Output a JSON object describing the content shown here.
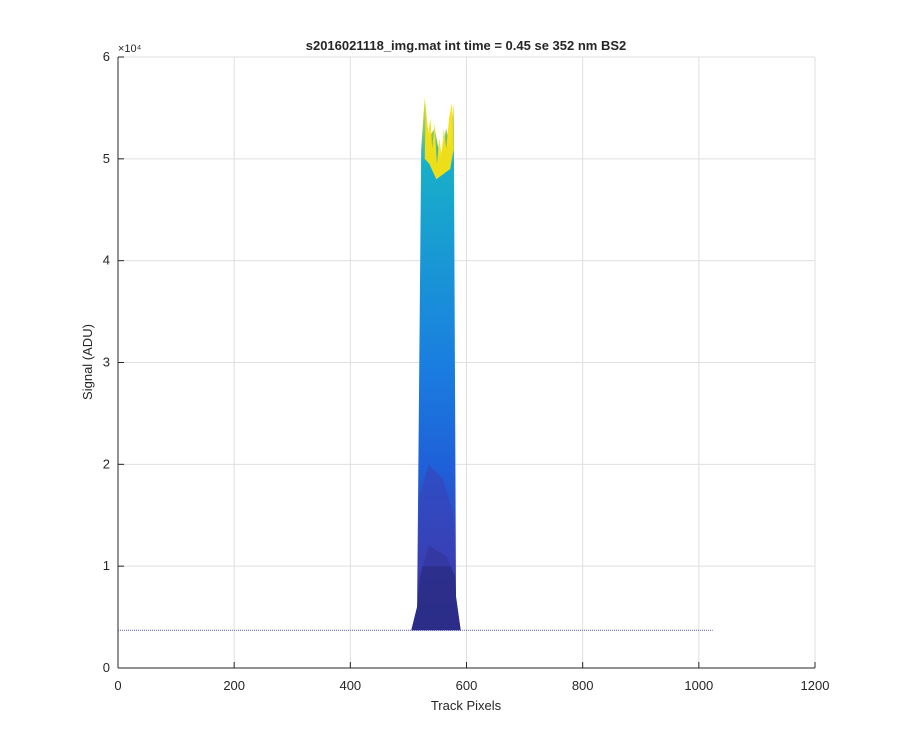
{
  "chart_data": {
    "type": "area",
    "title": "s2016021118_img.mat int time = 0.45 se  352 nm BS2",
    "xlabel": "Track Pixels",
    "ylabel": "Signal (ADU)",
    "xlim": [
      0,
      1200
    ],
    "ylim": [
      0,
      60000
    ],
    "xticks": [
      0,
      200,
      400,
      600,
      800,
      1000,
      1200
    ],
    "xtick_labels": [
      "0",
      "200",
      "400",
      "600",
      "800",
      "1000",
      "1200"
    ],
    "yticks": [
      0,
      10000,
      20000,
      30000,
      40000,
      50000,
      60000
    ],
    "ytick_labels": [
      "0",
      "1",
      "2",
      "3",
      "4",
      "5",
      "6"
    ],
    "y_exponent": "×10⁴",
    "grid": true,
    "colormap": [
      "#2b2d87",
      "#3b3fb5",
      "#1f5fd8",
      "#1a7ee0",
      "#18b0c8",
      "#f9e011"
    ],
    "baseline": {
      "x": [
        0,
        1024
      ],
      "y": 3700
    },
    "peak_region": {
      "x_start": 515,
      "x_end": 580,
      "peak_max": 56000
    },
    "series": [
      {
        "x": [
          505,
          515,
          522,
          528,
          535,
          545,
          555,
          565,
          572,
          578,
          582,
          590
        ],
        "y": [
          3700,
          6000,
          51000,
          56000,
          52000,
          53000,
          50000,
          53000,
          51000,
          55500,
          7000,
          3700
        ]
      }
    ]
  }
}
